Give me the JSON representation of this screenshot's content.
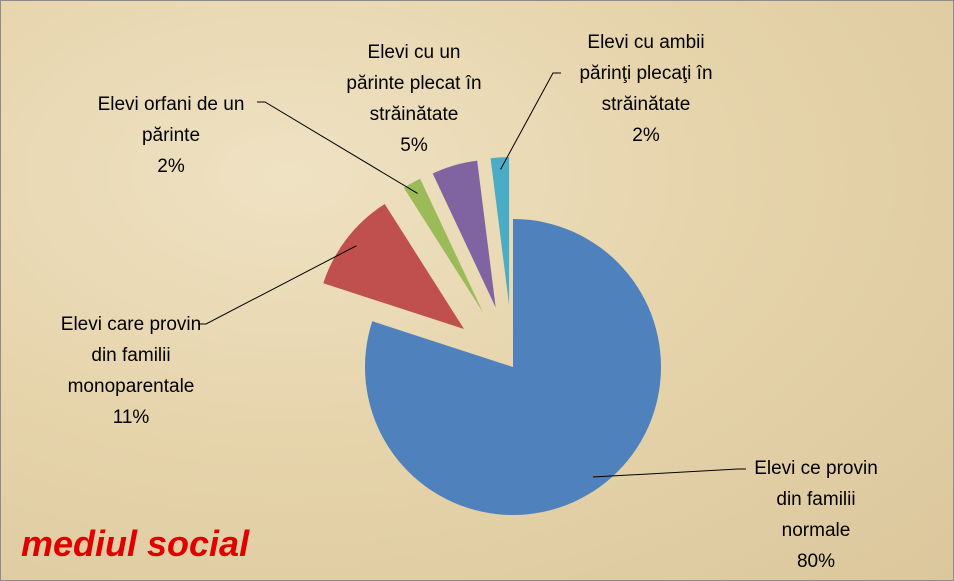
{
  "chart_data": {
    "type": "pie",
    "title": "mediul social",
    "categories": [
      "Elevi ce provin din familii normale",
      "Elevi care provin din familii monoparentale",
      "Elevi orfani de un părinte",
      "Elevi cu un părinte plecat în străinătate",
      "Elevi cu ambii părinţi plecaţi în străinătate"
    ],
    "values": [
      80,
      11,
      2,
      5,
      2
    ],
    "value_labels": [
      "80%",
      "11%",
      "2%",
      "5%",
      "2%"
    ],
    "colors": [
      "#4f81bd",
      "#c0504d",
      "#9bbb59",
      "#8064a2",
      "#4bacc6"
    ]
  }
}
